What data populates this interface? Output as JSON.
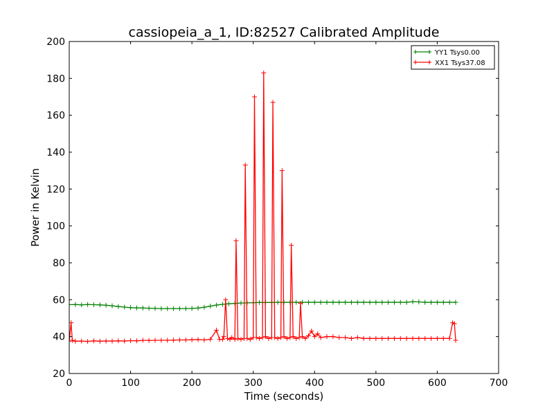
{
  "chart_data": {
    "type": "line",
    "title": "cassiopeia_a_1, ID:82527 Calibrated Amplitude",
    "xlabel": "Time (seconds)",
    "ylabel": "Power in Kelvin",
    "xlim": [
      0,
      700
    ],
    "ylim": [
      20,
      200
    ],
    "xticks": [
      0,
      100,
      200,
      300,
      400,
      500,
      600,
      700
    ],
    "yticks": [
      20,
      40,
      60,
      80,
      100,
      120,
      140,
      160,
      180,
      200
    ],
    "grid": false,
    "legend_position": "top-right",
    "marker": "+",
    "series": [
      {
        "name": "YY1 Tsys0.00",
        "color": "#008000",
        "x": [
          0,
          10,
          20,
          30,
          40,
          50,
          60,
          70,
          80,
          90,
          100,
          110,
          120,
          130,
          140,
          150,
          160,
          170,
          180,
          190,
          200,
          210,
          220,
          230,
          240,
          250,
          260,
          270,
          280,
          290,
          300,
          310,
          320,
          330,
          340,
          350,
          360,
          370,
          380,
          390,
          400,
          410,
          420,
          430,
          440,
          450,
          460,
          470,
          480,
          490,
          500,
          510,
          520,
          530,
          540,
          550,
          560,
          570,
          580,
          590,
          600,
          610,
          620,
          630
        ],
        "y": [
          57.3,
          57.4,
          57.2,
          57.4,
          57.3,
          57.2,
          57.0,
          56.7,
          56.3,
          56.0,
          55.7,
          55.6,
          55.5,
          55.4,
          55.3,
          55.2,
          55.2,
          55.2,
          55.2,
          55.2,
          55.3,
          55.5,
          55.9,
          56.5,
          57.1,
          57.5,
          57.8,
          58.0,
          58.2,
          58.3,
          58.4,
          58.5,
          58.5,
          58.5,
          58.6,
          58.6,
          58.6,
          58.6,
          58.6,
          58.6,
          58.6,
          58.6,
          58.6,
          58.6,
          58.6,
          58.6,
          58.6,
          58.6,
          58.6,
          58.6,
          58.6,
          58.6,
          58.6,
          58.6,
          58.6,
          58.6,
          58.9,
          58.8,
          58.6,
          58.6,
          58.6,
          58.6,
          58.6,
          58.6
        ]
      },
      {
        "name": "XX1 Tsys37.08",
        "color": "#ff0000",
        "x": [
          0,
          3,
          5,
          10,
          20,
          30,
          40,
          50,
          60,
          70,
          80,
          90,
          100,
          110,
          120,
          130,
          140,
          150,
          160,
          170,
          180,
          190,
          200,
          210,
          220,
          230,
          240,
          245,
          250,
          252,
          255,
          258,
          262,
          265,
          270,
          272,
          275,
          280,
          285,
          287,
          290,
          295,
          300,
          302,
          305,
          310,
          315,
          317,
          320,
          325,
          330,
          332,
          335,
          340,
          345,
          347,
          350,
          355,
          360,
          362,
          365,
          370,
          375,
          377,
          380,
          385,
          390,
          395,
          400,
          405,
          410,
          420,
          430,
          440,
          450,
          460,
          470,
          480,
          490,
          500,
          510,
          520,
          530,
          540,
          550,
          560,
          570,
          580,
          590,
          600,
          610,
          620,
          625,
          628,
          630
        ],
        "y": [
          37.5,
          47.5,
          38.0,
          37.5,
          37.6,
          37.4,
          37.7,
          37.5,
          37.6,
          37.6,
          37.7,
          37.6,
          37.8,
          37.7,
          38.0,
          37.9,
          38.0,
          38.0,
          38.0,
          38.1,
          38.2,
          38.2,
          38.3,
          38.4,
          38.2,
          38.5,
          43.5,
          38.5,
          38.5,
          40.0,
          60.0,
          39.0,
          38.5,
          39.5,
          38.5,
          92.0,
          39.0,
          38.5,
          39.0,
          133.0,
          39.0,
          38.5,
          39.5,
          170.0,
          39.5,
          39.0,
          39.5,
          183.0,
          40.0,
          39.0,
          39.5,
          167.0,
          39.5,
          39.0,
          39.5,
          130.0,
          40.0,
          39.0,
          39.5,
          89.5,
          40.0,
          39.0,
          39.5,
          58.0,
          40.0,
          39.0,
          40.5,
          43.0,
          40.0,
          41.5,
          39.5,
          40.0,
          40.0,
          39.5,
          39.5,
          39.0,
          39.5,
          39.0,
          39.0,
          39.0,
          39.0,
          39.0,
          39.0,
          39.0,
          39.0,
          39.0,
          39.0,
          39.0,
          39.0,
          39.0,
          39.0,
          39.0,
          47.5,
          47.0,
          38.0
        ]
      }
    ]
  }
}
